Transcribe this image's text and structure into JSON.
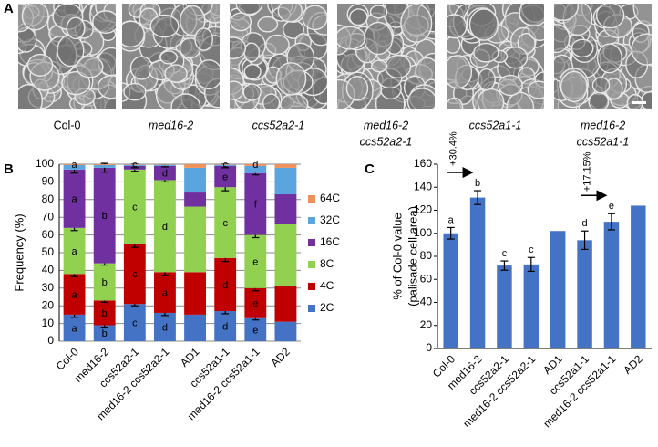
{
  "panel_a": {
    "label": "A",
    "captions": [
      [
        "Col-0"
      ],
      [
        "med16-2"
      ],
      [
        "ccs52a2-1"
      ],
      [
        "med16-2",
        "ccs52a2-1"
      ],
      [
        "ccs52a1-1"
      ],
      [
        "med16-2",
        "ccs52a1-1"
      ]
    ]
  },
  "chart_data": [
    {
      "type": "stacked_bar",
      "panel_label": "B",
      "y_label": "Frequency (%)",
      "categories": [
        "Col-0",
        "med16-2",
        "ccs52a2-1",
        "med16-2 ccs52a2-1",
        "AD1",
        "ccs52a1-1",
        "med16-2 ccs52a1-1",
        "AD2"
      ],
      "ylim": [
        0,
        100
      ],
      "yticks": [
        0,
        10,
        20,
        30,
        40,
        50,
        60,
        70,
        80,
        90,
        100
      ],
      "series": [
        {
          "name": "2C",
          "color": "#4472c4",
          "values": [
            15,
            9,
            21,
            16,
            15,
            17,
            13,
            11
          ],
          "errors": [
            1.5,
            1.5,
            1,
            1.5,
            null,
            1.5,
            1,
            null
          ],
          "letters": [
            "a",
            "b",
            "c",
            "d",
            null,
            "d",
            "e",
            null
          ]
        },
        {
          "name": "4C",
          "color": "#c00000",
          "values": [
            23,
            14,
            34,
            23,
            24,
            30,
            17,
            20
          ],
          "errors": [
            1.5,
            1,
            2,
            2,
            null,
            2,
            1.5,
            null
          ],
          "letters": [
            "a",
            "b",
            "c",
            "a",
            null,
            "d",
            "e",
            null
          ]
        },
        {
          "name": "8C",
          "color": "#92d050",
          "values": [
            26,
            21,
            42,
            52,
            37,
            40,
            30,
            35
          ],
          "errors": [
            1.5,
            1,
            1,
            1,
            null,
            2,
            1.5,
            null
          ],
          "letters": [
            "a",
            "b",
            "c",
            "d",
            null,
            "c",
            "e",
            null
          ]
        },
        {
          "name": "16C",
          "color": "#7030a0",
          "values": [
            33,
            54,
            2,
            8,
            8,
            12,
            35,
            17
          ],
          "errors": [
            2,
            2.5,
            1,
            0.5,
            null,
            1,
            1,
            null
          ],
          "letters": [
            "a",
            "b",
            null,
            "d",
            null,
            "e",
            "f",
            null
          ]
        },
        {
          "name": "32C",
          "color": "#5aa5e0",
          "values": [
            2.5,
            1.5,
            0.7,
            0.7,
            14,
            0.7,
            4,
            15
          ],
          "errors": [
            null,
            null,
            null,
            null,
            null,
            null,
            null,
            null
          ],
          "letters": [
            null,
            null,
            null,
            null,
            null,
            null,
            null,
            null
          ]
        },
        {
          "name": "64C",
          "color": "#f0905a",
          "values": [
            0.5,
            0.5,
            0.3,
            0.3,
            2,
            0.3,
            1,
            2
          ],
          "errors": [
            null,
            null,
            null,
            null,
            null,
            null,
            null,
            null
          ],
          "letters": [
            null,
            null,
            null,
            null,
            null,
            null,
            null,
            null
          ]
        }
      ],
      "top_letters": [
        "a",
        null,
        "c",
        null,
        null,
        "c",
        "d",
        null
      ]
    },
    {
      "type": "bar",
      "panel_label": "C",
      "y_label": [
        "% of Col-0 value",
        "(palisade cell area)"
      ],
      "categories": [
        "Col-0",
        "med16-2",
        "ccs52a2-1",
        "med16-2 ccs52a2-1",
        "AD1",
        "ccs52a1-1",
        "med16-2 ccs52a1-1",
        "AD2"
      ],
      "values": [
        100,
        131,
        72,
        73,
        102,
        94,
        110,
        124
      ],
      "errors": [
        5,
        6,
        4,
        6,
        null,
        8,
        7,
        null
      ],
      "letters": [
        "a",
        "b",
        "c",
        "c",
        null,
        "d",
        "e",
        null
      ],
      "annotations": [
        null,
        "+30.4%",
        null,
        null,
        null,
        null,
        "+17.15%",
        null
      ],
      "color": "#4472c4",
      "ylim": [
        0,
        160
      ],
      "yticks": [
        0,
        20,
        40,
        60,
        80,
        100,
        120,
        140,
        160
      ]
    }
  ]
}
